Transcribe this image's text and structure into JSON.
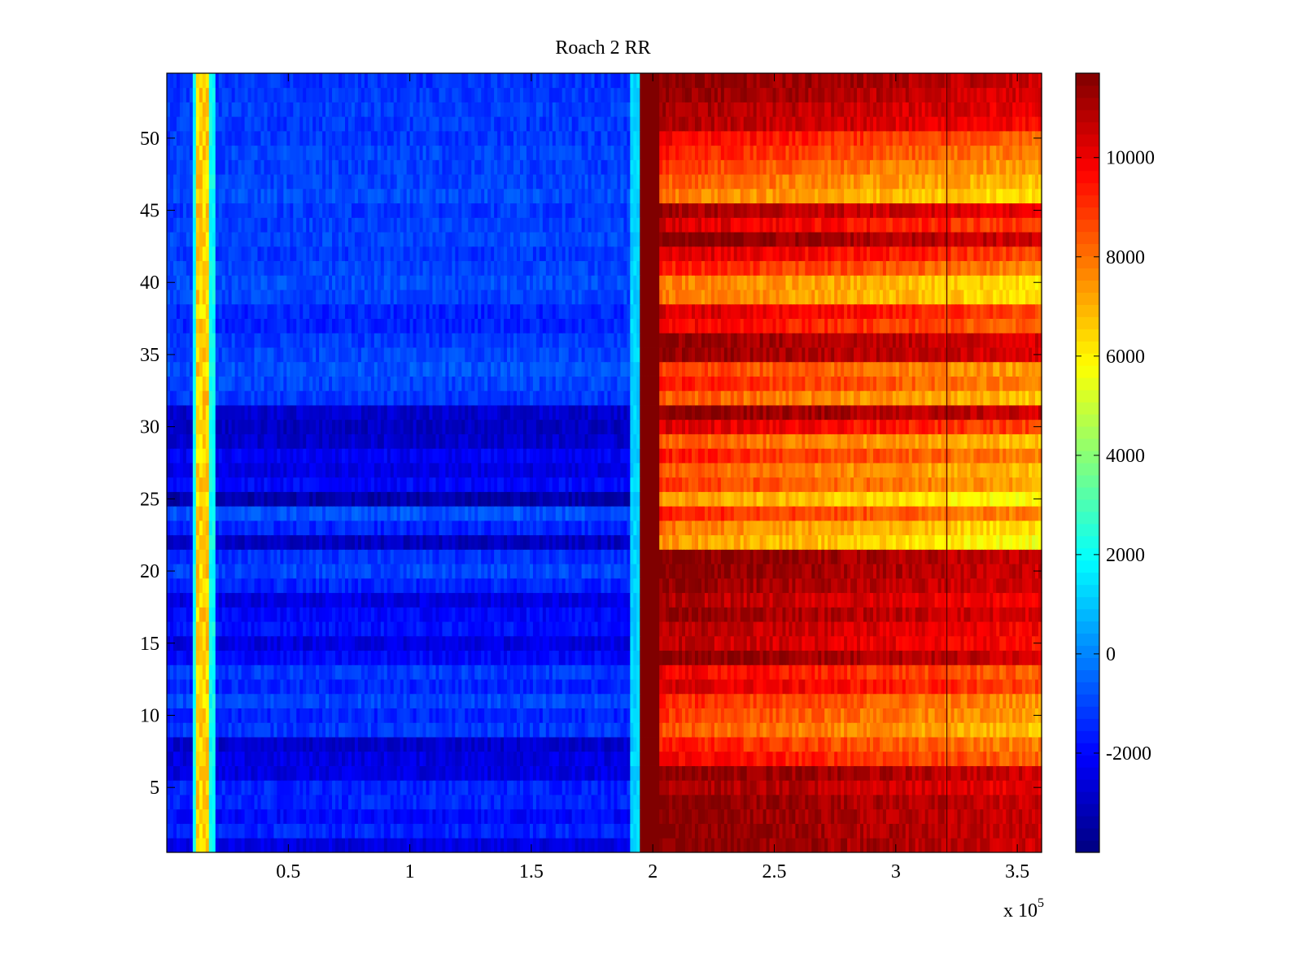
{
  "chart_data": {
    "type": "heatmap",
    "title": "Roach 2 RR",
    "xlabel": "",
    "ylabel": "",
    "x_exponent_label": "x 10",
    "x_exponent_power": "5",
    "xlim": [
      0,
      360000
    ],
    "ylim": [
      0.5,
      54.5
    ],
    "x_ticks": [
      50000,
      100000,
      150000,
      200000,
      250000,
      300000,
      350000
    ],
    "x_tick_labels": [
      "0.5",
      "1",
      "1.5",
      "2",
      "2.5",
      "3",
      "3.5"
    ],
    "y_ticks": [
      5,
      10,
      15,
      20,
      25,
      30,
      35,
      40,
      45,
      50
    ],
    "y_tick_labels": [
      "5",
      "10",
      "15",
      "20",
      "25",
      "30",
      "35",
      "40",
      "45",
      "50"
    ],
    "rows": 54,
    "colormap": "jet",
    "clim": [
      -4000,
      11700
    ],
    "colorbar": {
      "ticks": [
        -2000,
        0,
        2000,
        4000,
        6000,
        8000,
        10000
      ],
      "tick_labels": [
        "-2000",
        "0",
        "2000",
        "4000",
        "6000",
        "8000",
        "10000"
      ]
    },
    "regions": [
      {
        "name": "left band",
        "x_range": [
          0,
          195000
        ],
        "typical_value": -1500
      },
      {
        "name": "bright stripe",
        "x_center": 15000,
        "typical_value": 6500
      },
      {
        "name": "transition",
        "x_center": 196000,
        "typical_value": 12000
      },
      {
        "name": "right band",
        "x_range": [
          198000,
          360000
        ],
        "typical_value": 9500
      }
    ],
    "row_profile_right": [
      11700,
      11700,
      11700,
      11700,
      11200,
      11700,
      10000,
      9500,
      8500,
      9000,
      9300,
      10500,
      10000,
      11700,
      10800,
      11000,
      11500,
      11000,
      11500,
      11700,
      11700,
      7500,
      8000,
      9500,
      7500,
      9000,
      8500,
      9500,
      8500,
      10500,
      11700,
      8500,
      9500,
      9000,
      11500,
      11500,
      10000,
      10500,
      8000,
      8000,
      9500,
      10500,
      11700,
      10500,
      11200,
      8000,
      8500,
      9000,
      9500,
      10000,
      11000,
      11200,
      11500,
      11700
    ],
    "row_profile_left": [
      -2500,
      -1500,
      -2000,
      -1500,
      -1500,
      -2500,
      -2500,
      -2800,
      -1200,
      -1500,
      -1000,
      -1500,
      -1200,
      -2000,
      -2500,
      -1800,
      -2000,
      -2500,
      -1500,
      -1000,
      -1300,
      -3000,
      -1500,
      -800,
      -3300,
      -2000,
      -2500,
      -2200,
      -2800,
      -3000,
      -2800,
      -1200,
      -1000,
      -800,
      -1000,
      -1200,
      -1500,
      -1500,
      -1000,
      -900,
      -1000,
      -1200,
      -1000,
      -1100,
      -1200,
      -900,
      -1000,
      -1100,
      -1000,
      -1200,
      -1200,
      -1100,
      -1200,
      -1300
    ]
  }
}
